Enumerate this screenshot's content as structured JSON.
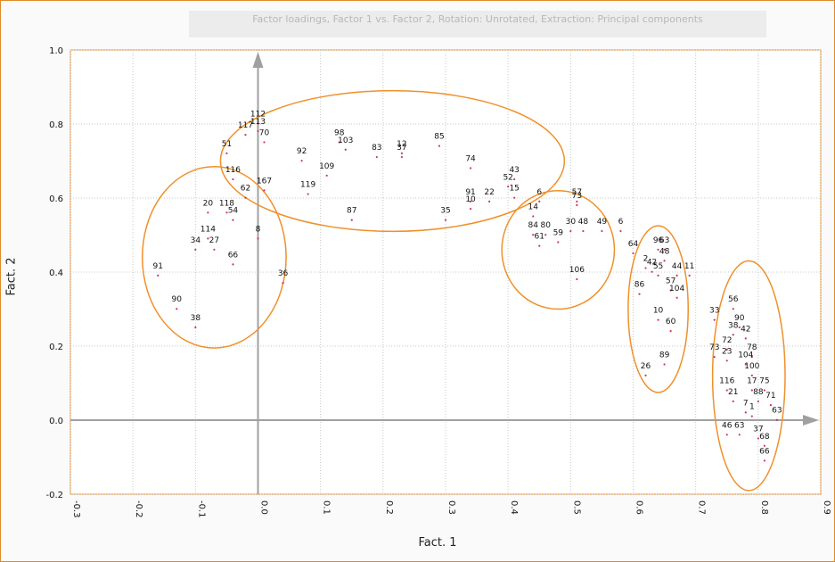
{
  "colors": {
    "frame": "#e08a2a",
    "ellipse": "#f0902a",
    "axis": "#a0a0a0",
    "point": "#d0306a",
    "grid": "#c8c8c8"
  },
  "chart_data": {
    "type": "scatter",
    "title": "Factor loadings, Factor 1 vs. Factor 2, Rotation: Unrotated, Extraction: Principal components",
    "xlabel": "Fact. 1",
    "ylabel": "Fact. 2",
    "xlim": [
      -0.3,
      0.9
    ],
    "ylim": [
      -0.2,
      1.0
    ],
    "x_ticks": [
      "-0.3",
      "-0.2",
      "-0.1",
      "0.0",
      "0.1",
      "0.2",
      "0.3",
      "0.4",
      "0.5",
      "0.6",
      "0.7",
      "0.8",
      "0.9"
    ],
    "y_ticks": [
      "-0.2",
      "0.0",
      "0.2",
      "0.4",
      "0.6",
      "0.8",
      "1.0"
    ],
    "grid": true,
    "points": [
      {
        "label": "112",
        "x": 0.0,
        "y": 0.82
      },
      {
        "label": "113",
        "x": 0.0,
        "y": 0.8
      },
      {
        "label": "117",
        "x": -0.02,
        "y": 0.79
      },
      {
        "label": "70",
        "x": 0.01,
        "y": 0.77
      },
      {
        "label": "51",
        "x": -0.05,
        "y": 0.74
      },
      {
        "label": "116",
        "x": -0.04,
        "y": 0.67
      },
      {
        "label": "167",
        "x": 0.01,
        "y": 0.64
      },
      {
        "label": "62",
        "x": -0.02,
        "y": 0.62
      },
      {
        "label": "92",
        "x": 0.07,
        "y": 0.72
      },
      {
        "label": "109",
        "x": 0.11,
        "y": 0.68
      },
      {
        "label": "119",
        "x": 0.08,
        "y": 0.63
      },
      {
        "label": "98",
        "x": 0.13,
        "y": 0.77
      },
      {
        "label": "103",
        "x": 0.14,
        "y": 0.75
      },
      {
        "label": "83",
        "x": 0.19,
        "y": 0.73
      },
      {
        "label": "12",
        "x": 0.23,
        "y": 0.74
      },
      {
        "label": "37",
        "x": 0.23,
        "y": 0.73
      },
      {
        "label": "85",
        "x": 0.29,
        "y": 0.76
      },
      {
        "label": "74",
        "x": 0.34,
        "y": 0.7
      },
      {
        "label": "43",
        "x": 0.41,
        "y": 0.67
      },
      {
        "label": "52",
        "x": 0.4,
        "y": 0.65
      },
      {
        "label": "15",
        "x": 0.41,
        "y": 0.62
      },
      {
        "label": "91",
        "x": 0.34,
        "y": 0.61
      },
      {
        "label": "22",
        "x": 0.37,
        "y": 0.61
      },
      {
        "label": "10",
        "x": 0.34,
        "y": 0.59
      },
      {
        "label": "87",
        "x": 0.15,
        "y": 0.56
      },
      {
        "label": "35",
        "x": 0.3,
        "y": 0.56
      },
      {
        "label": "20",
        "x": -0.08,
        "y": 0.58
      },
      {
        "label": "118",
        "x": -0.05,
        "y": 0.58
      },
      {
        "label": "54",
        "x": -0.04,
        "y": 0.56
      },
      {
        "label": "8",
        "x": 0.0,
        "y": 0.51
      },
      {
        "label": "114",
        "x": -0.08,
        "y": 0.51
      },
      {
        "label": "34",
        "x": -0.1,
        "y": 0.48
      },
      {
        "label": "27",
        "x": -0.07,
        "y": 0.48
      },
      {
        "label": "66",
        "x": -0.04,
        "y": 0.44
      },
      {
        "label": "91",
        "x": -0.16,
        "y": 0.41
      },
      {
        "label": "36",
        "x": 0.04,
        "y": 0.39
      },
      {
        "label": "90",
        "x": -0.13,
        "y": 0.32
      },
      {
        "label": "38",
        "x": -0.1,
        "y": 0.27
      },
      {
        "label": "6",
        "x": 0.45,
        "y": 0.61
      },
      {
        "label": "57",
        "x": 0.51,
        "y": 0.61
      },
      {
        "label": "73",
        "x": 0.51,
        "y": 0.6
      },
      {
        "label": "14",
        "x": 0.44,
        "y": 0.57
      },
      {
        "label": "84",
        "x": 0.44,
        "y": 0.52
      },
      {
        "label": "80",
        "x": 0.46,
        "y": 0.52
      },
      {
        "label": "30",
        "x": 0.5,
        "y": 0.53
      },
      {
        "label": "48",
        "x": 0.52,
        "y": 0.53
      },
      {
        "label": "49",
        "x": 0.55,
        "y": 0.53
      },
      {
        "label": "6",
        "x": 0.58,
        "y": 0.53
      },
      {
        "label": "59",
        "x": 0.48,
        "y": 0.5
      },
      {
        "label": "61",
        "x": 0.45,
        "y": 0.49
      },
      {
        "label": "106",
        "x": 0.51,
        "y": 0.4
      },
      {
        "label": "64",
        "x": 0.6,
        "y": 0.47
      },
      {
        "label": "96",
        "x": 0.64,
        "y": 0.48
      },
      {
        "label": "63",
        "x": 0.65,
        "y": 0.48
      },
      {
        "label": "48",
        "x": 0.65,
        "y": 0.45
      },
      {
        "label": "2",
        "x": 0.62,
        "y": 0.43
      },
      {
        "label": "42",
        "x": 0.63,
        "y": 0.42
      },
      {
        "label": "55",
        "x": 0.64,
        "y": 0.41
      },
      {
        "label": "44",
        "x": 0.67,
        "y": 0.41
      },
      {
        "label": "11",
        "x": 0.69,
        "y": 0.41
      },
      {
        "label": "57",
        "x": 0.66,
        "y": 0.37
      },
      {
        "label": "104",
        "x": 0.67,
        "y": 0.35
      },
      {
        "label": "86",
        "x": 0.61,
        "y": 0.36
      },
      {
        "label": "10",
        "x": 0.64,
        "y": 0.29
      },
      {
        "label": "60",
        "x": 0.66,
        "y": 0.26
      },
      {
        "label": "89",
        "x": 0.65,
        "y": 0.17
      },
      {
        "label": "26",
        "x": 0.62,
        "y": 0.14
      },
      {
        "label": "56",
        "x": 0.76,
        "y": 0.32
      },
      {
        "label": "33",
        "x": 0.73,
        "y": 0.29
      },
      {
        "label": "90",
        "x": 0.77,
        "y": 0.27
      },
      {
        "label": "38",
        "x": 0.76,
        "y": 0.25
      },
      {
        "label": "42",
        "x": 0.78,
        "y": 0.24
      },
      {
        "label": "72",
        "x": 0.75,
        "y": 0.21
      },
      {
        "label": "73",
        "x": 0.73,
        "y": 0.19
      },
      {
        "label": "23",
        "x": 0.75,
        "y": 0.18
      },
      {
        "label": "78",
        "x": 0.79,
        "y": 0.19
      },
      {
        "label": "104",
        "x": 0.78,
        "y": 0.17
      },
      {
        "label": "100",
        "x": 0.79,
        "y": 0.14
      },
      {
        "label": "116",
        "x": 0.75,
        "y": 0.1
      },
      {
        "label": "17",
        "x": 0.79,
        "y": 0.1
      },
      {
        "label": "75",
        "x": 0.81,
        "y": 0.1
      },
      {
        "label": "21",
        "x": 0.76,
        "y": 0.07
      },
      {
        "label": "88",
        "x": 0.8,
        "y": 0.07
      },
      {
        "label": "71",
        "x": 0.82,
        "y": 0.06
      },
      {
        "label": "7",
        "x": 0.78,
        "y": 0.04
      },
      {
        "label": "1",
        "x": 0.79,
        "y": 0.03
      },
      {
        "label": "63",
        "x": 0.83,
        "y": 0.02
      },
      {
        "label": "46",
        "x": 0.75,
        "y": -0.02
      },
      {
        "label": "63",
        "x": 0.77,
        "y": -0.02
      },
      {
        "label": "37",
        "x": 0.8,
        "y": -0.03
      },
      {
        "label": "68",
        "x": 0.81,
        "y": -0.05
      },
      {
        "label": "66",
        "x": 0.81,
        "y": -0.09
      }
    ],
    "clusters": [
      {
        "cx": 0.215,
        "cy": 0.7,
        "rx": 0.275,
        "ry": 0.19
      },
      {
        "cx": -0.07,
        "cy": 0.44,
        "rx": 0.115,
        "ry": 0.245
      },
      {
        "cx": 0.48,
        "cy": 0.46,
        "rx": 0.09,
        "ry": 0.16
      },
      {
        "cx": 0.64,
        "cy": 0.3,
        "rx": 0.048,
        "ry": 0.225
      },
      {
        "cx": 0.785,
        "cy": 0.12,
        "rx": 0.058,
        "ry": 0.31
      }
    ]
  }
}
